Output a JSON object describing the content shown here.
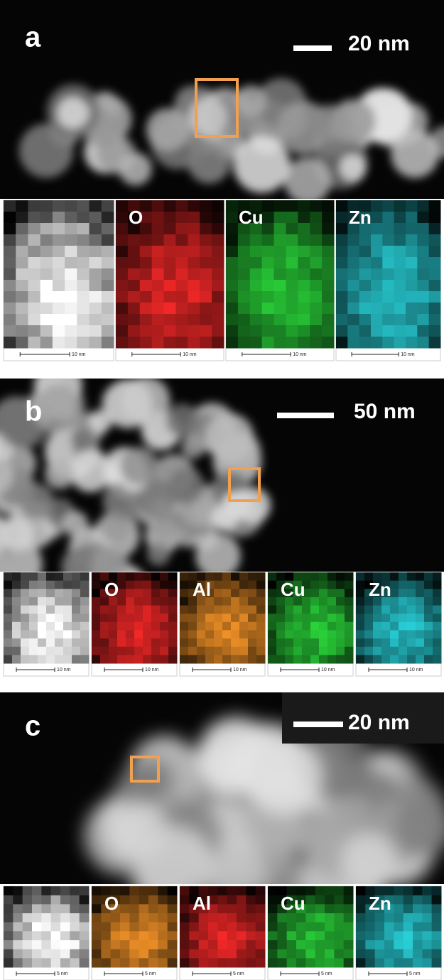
{
  "panels": [
    {
      "label": "a",
      "scale_bar": "20 nm",
      "maps": [
        {
          "color": "#ffffff",
          "scale_bar": "10 nm"
        },
        {
          "element": "O",
          "color": "#ff2a2a",
          "scale_bar": "10 nm"
        },
        {
          "element": "Cu",
          "color": "#2cdc3c",
          "scale_bar": "10 nm"
        },
        {
          "element": "Zn",
          "color": "#2ad8e0",
          "scale_bar": "10 nm"
        }
      ]
    },
    {
      "label": "b",
      "scale_bar": "50 nm",
      "maps": [
        {
          "color": "#ffffff",
          "scale_bar": "10 nm"
        },
        {
          "element": "O",
          "color": "#ff2a2a",
          "scale_bar": "10 nm"
        },
        {
          "element": "Al",
          "color": "#ff9a2a",
          "scale_bar": "10 nm"
        },
        {
          "element": "Cu",
          "color": "#2cdc3c",
          "scale_bar": "10 nm"
        },
        {
          "element": "Zn",
          "color": "#2ad8e0",
          "scale_bar": "10 nm"
        }
      ]
    },
    {
      "label": "c",
      "scale_bar": "20 nm",
      "maps": [
        {
          "color": "#ffffff",
          "scale_bar": "5 nm"
        },
        {
          "element": "O",
          "color": "#ff9a2a",
          "scale_bar": "5 nm"
        },
        {
          "element": "Al",
          "color": "#ff2a2a",
          "scale_bar": "5 nm"
        },
        {
          "element": "Cu",
          "color": "#2cdc3c",
          "scale_bar": "5 nm"
        },
        {
          "element": "Zn",
          "color": "#2ad8e0",
          "scale_bar": "5 nm"
        }
      ]
    }
  ]
}
